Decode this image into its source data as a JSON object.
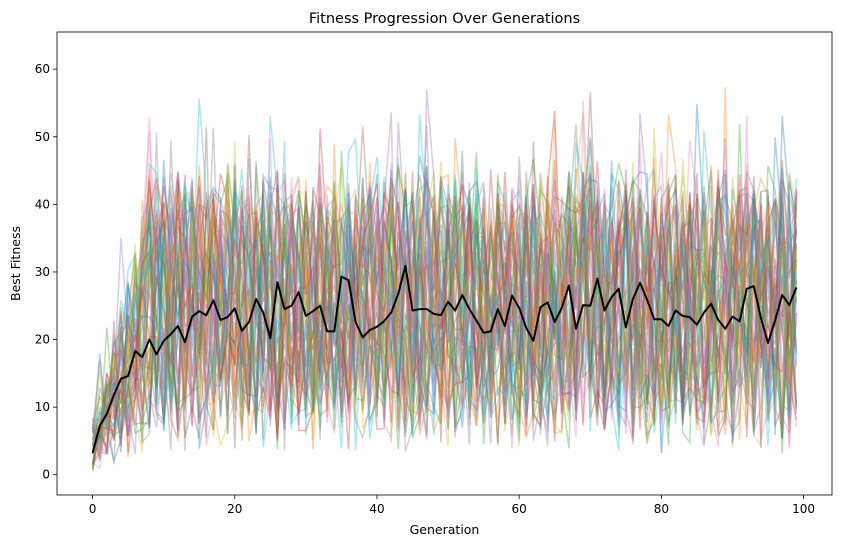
{
  "chart_data": {
    "type": "line",
    "title": "Fitness Progression Over Generations",
    "xlabel": "Generation",
    "ylabel": "Best Fitness",
    "xlim": [
      -5,
      104
    ],
    "ylim": [
      -3,
      65.5
    ],
    "xticks": [
      0,
      20,
      40,
      60,
      80,
      100
    ],
    "yticks": [
      0,
      10,
      20,
      30,
      40,
      50,
      60
    ],
    "xtick_labels": [
      "0",
      "20",
      "40",
      "60",
      "80",
      "100"
    ],
    "ytick_labels": [
      "0",
      "10",
      "20",
      "30",
      "40",
      "50",
      "60"
    ],
    "grid": false,
    "background_runs": {
      "count": 50,
      "generations": 100,
      "opacity": 0.35,
      "colors": [
        "#1f77b4",
        "#ff7f0e",
        "#2ca02c",
        "#d62728",
        "#9467bd",
        "#8c564b",
        "#e377c2",
        "#7f7f7f",
        "#bcbd22",
        "#17becf"
      ]
    },
    "series": [
      {
        "color": "#000000",
        "x": [
          0,
          1,
          2,
          3,
          4,
          5,
          6,
          7,
          8,
          9,
          10,
          11,
          12,
          13,
          14,
          15,
          16,
          17,
          18,
          19,
          20,
          21,
          22,
          23,
          24,
          25,
          26,
          27,
          28,
          29,
          30,
          31,
          32,
          33,
          34,
          35,
          36,
          37,
          38,
          39,
          40,
          41,
          42,
          43,
          44,
          45,
          46,
          47,
          48,
          49,
          50,
          51,
          52,
          53,
          54,
          55,
          56,
          57,
          58,
          59,
          60,
          61,
          62,
          63,
          64,
          65,
          66,
          67,
          68,
          69,
          70,
          71,
          72,
          73,
          74,
          75,
          76,
          77,
          78,
          79,
          80,
          81,
          82,
          83,
          84,
          85,
          86,
          87,
          88,
          89,
          90,
          91,
          92,
          93,
          94,
          95,
          96,
          97,
          98,
          99
        ],
        "values": [
          3.2,
          7.2,
          9.0,
          11.8,
          14.2,
          14.6,
          18.3,
          17.4,
          20.0,
          17.8,
          19.8,
          20.8,
          22.0,
          19.6,
          23.4,
          24.2,
          23.6,
          25.8,
          22.9,
          23.3,
          24.6,
          21.3,
          22.6,
          26.0,
          24.0,
          20.2,
          28.5,
          24.5,
          25.0,
          27.0,
          23.5,
          24.2,
          25.0,
          21.2,
          21.2,
          29.3,
          28.8,
          22.6,
          20.3,
          21.4,
          21.9,
          22.7,
          24.0,
          26.8,
          30.9,
          24.3,
          24.5,
          24.5,
          23.8,
          23.6,
          25.6,
          24.3,
          26.6,
          24.5,
          22.8,
          21.0,
          21.2,
          24.5,
          22.0,
          26.5,
          24.7,
          21.7,
          19.8,
          24.8,
          25.5,
          22.6,
          24.7,
          28.0,
          21.6,
          25.1,
          25.0,
          29.0,
          24.3,
          26.3,
          27.5,
          21.8,
          26.0,
          28.4,
          25.9,
          23.0,
          23.0,
          22.0,
          24.3,
          23.5,
          23.3,
          22.2,
          24.0,
          25.3,
          22.9,
          21.6,
          23.4,
          22.7,
          27.5,
          27.9,
          23.2,
          19.5,
          22.8,
          26.6,
          25.1,
          27.7
        ]
      }
    ]
  }
}
